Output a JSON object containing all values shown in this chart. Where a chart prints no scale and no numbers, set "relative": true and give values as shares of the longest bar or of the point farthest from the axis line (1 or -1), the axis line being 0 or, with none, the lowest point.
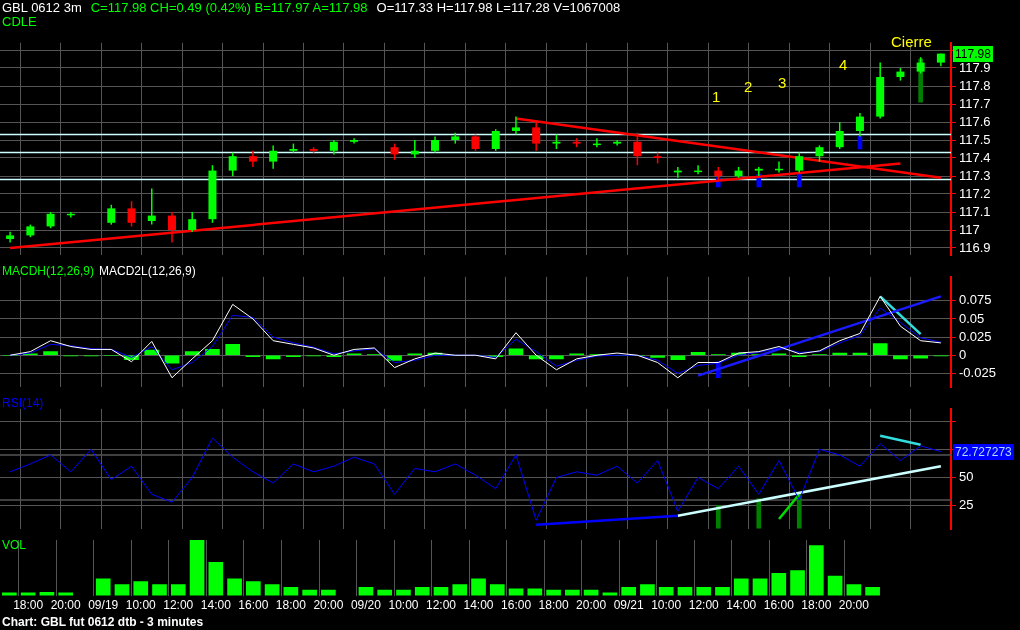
{
  "chart_data": [
    {
      "type": "candlestick",
      "title": "GBL 0612 3m",
      "subtitle": "C=117.98  CH=0.49 (0.42%)  B=117.97  A=117.98",
      "ylabel": "CDLE",
      "annotations": [
        "O=117.33  H=117.98  L=117.28  V=1067008",
        "117.98",
        "1",
        "2",
        "3",
        "4",
        "Cierre"
      ],
      "categories": [
        null,
        null,
        null,
        null,
        null,
        null,
        null,
        null,
        null,
        null,
        null,
        null,
        null,
        null,
        null,
        null,
        null,
        null,
        null,
        null,
        null,
        null,
        null,
        null,
        null,
        null,
        null,
        null,
        null,
        null,
        null,
        null,
        null,
        null,
        null,
        null,
        null,
        null,
        null,
        null,
        null,
        null,
        null,
        null,
        null,
        null,
        null
      ],
      "ohlc": [
        [
          116.95,
          116.99,
          116.93,
          116.97
        ],
        [
          116.97,
          117.03,
          116.96,
          117.02
        ],
        [
          117.02,
          117.1,
          117.01,
          117.09
        ],
        [
          117.09,
          117.1,
          117.07,
          117.09
        ],
        null,
        [
          117.04,
          117.14,
          117.03,
          117.12
        ],
        [
          117.12,
          117.16,
          117.02,
          117.04
        ],
        [
          117.05,
          117.23,
          117.03,
          117.08
        ],
        [
          117.08,
          117.1,
          116.93,
          117.0
        ],
        [
          117.0,
          117.1,
          116.99,
          117.06
        ],
        [
          117.06,
          117.36,
          117.04,
          117.33
        ],
        [
          117.33,
          117.43,
          117.3,
          117.41
        ],
        [
          117.41,
          117.44,
          117.35,
          117.38
        ],
        [
          117.38,
          117.47,
          117.34,
          117.44
        ],
        [
          117.44,
          117.48,
          117.43,
          117.45
        ],
        [
          117.45,
          117.46,
          117.43,
          117.44
        ],
        [
          117.44,
          117.5,
          117.42,
          117.49
        ],
        [
          117.49,
          117.51,
          117.48,
          117.5
        ],
        null,
        [
          117.46,
          117.48,
          117.39,
          117.42
        ],
        [
          117.42,
          117.5,
          117.4,
          117.44
        ],
        [
          117.44,
          117.52,
          117.43,
          117.5
        ],
        [
          117.5,
          117.54,
          117.48,
          117.52
        ],
        [
          117.52,
          117.53,
          117.44,
          117.45
        ],
        [
          117.45,
          117.56,
          117.44,
          117.55
        ],
        [
          117.55,
          117.63,
          117.53,
          117.57
        ],
        [
          117.57,
          117.6,
          117.44,
          117.48
        ],
        [
          117.48,
          117.53,
          117.45,
          117.49
        ],
        [
          117.49,
          117.51,
          117.46,
          117.48
        ],
        [
          117.48,
          117.51,
          117.46,
          117.48
        ],
        [
          117.48,
          117.5,
          117.47,
          117.49
        ],
        [
          117.49,
          117.54,
          117.36,
          117.41
        ],
        [
          117.41,
          117.43,
          117.37,
          117.4
        ],
        [
          117.32,
          117.35,
          117.29,
          117.33
        ],
        [
          117.33,
          117.36,
          117.31,
          117.33
        ],
        [
          117.33,
          117.35,
          117.27,
          117.3
        ],
        [
          117.3,
          117.35,
          117.29,
          117.33
        ],
        [
          117.33,
          117.35,
          117.3,
          117.34
        ],
        [
          117.34,
          117.38,
          117.32,
          117.34
        ],
        [
          117.33,
          117.43,
          117.32,
          117.41
        ],
        [
          117.41,
          117.47,
          117.38,
          117.46
        ],
        [
          117.46,
          117.6,
          117.45,
          117.55
        ],
        [
          117.55,
          117.65,
          117.52,
          117.63
        ],
        [
          117.63,
          117.93,
          117.62,
          117.85
        ],
        [
          117.85,
          117.9,
          117.83,
          117.88
        ],
        [
          117.88,
          117.96,
          117.87,
          117.93
        ],
        [
          117.93,
          117.98,
          117.91,
          117.98
        ]
      ],
      "colors": [
        "#00ff00",
        "#00ff00",
        "#00ff00",
        "#00ff00",
        null,
        "#00ff00",
        "#ff0000",
        "#00ff00",
        "#ff0000",
        "#00ff00",
        "#00ff00",
        "#00ff00",
        "#ff0000",
        "#00ff00",
        "#00ff00",
        "#ff0000",
        "#00ff00",
        "#00ff00",
        null,
        "#ff0000",
        "#00ff00",
        "#00ff00",
        "#00ff00",
        "#ff0000",
        "#00ff00",
        "#00ff00",
        "#ff0000",
        "#00ff00",
        "#ff0000",
        "#00ff00",
        "#00ff00",
        "#ff0000",
        "#ff0000",
        "#00ff00",
        "#00ff00",
        "#ff0000",
        "#00ff00",
        "#00ff00",
        "#00ff00",
        "#00ff00",
        "#00ff00",
        "#00ff00",
        "#00ff00",
        "#00ff00",
        "#00ff00",
        "#00ff00",
        "#00ff00"
      ],
      "series": [
        {
          "type": "line",
          "color": "#ff0000",
          "values": [
            116.9,
            null,
            null,
            null,
            null,
            null,
            null,
            null,
            null,
            null,
            null,
            null,
            null,
            null,
            null,
            null,
            null,
            null,
            null,
            null,
            null,
            null,
            null,
            null,
            null,
            null,
            null,
            null,
            null,
            null,
            null,
            null,
            null,
            null,
            null,
            null,
            null,
            null,
            null,
            null,
            null,
            null,
            null,
            null,
            117.37,
            null,
            null
          ]
        },
        {
          "type": "line",
          "color": "#ff0000",
          "values": [
            null,
            null,
            null,
            null,
            null,
            null,
            null,
            null,
            null,
            null,
            null,
            null,
            null,
            null,
            null,
            null,
            null,
            null,
            null,
            null,
            null,
            null,
            null,
            null,
            null,
            117.62,
            null,
            null,
            null,
            null,
            null,
            null,
            null,
            null,
            null,
            null,
            null,
            null,
            null,
            null,
            null,
            null,
            null,
            null,
            null,
            null,
            117.29
          ]
        },
        {
          "type": "bar",
          "base": [
            null,
            null,
            null,
            null,
            null,
            null,
            null,
            null,
            null,
            null,
            null,
            null,
            null,
            null,
            null,
            null,
            null,
            null,
            null,
            null,
            null,
            null,
            null,
            null,
            null,
            null,
            null,
            null,
            null,
            null,
            null,
            null,
            null,
            null,
            null,
            117.24,
            null,
            117.24,
            null,
            117.24,
            null,
            null,
            117.45,
            null,
            null,
            117.71,
            null
          ],
          "values": [
            null,
            null,
            null,
            null,
            null,
            null,
            null,
            null,
            null,
            null,
            null,
            null,
            null,
            null,
            null,
            null,
            null,
            null,
            null,
            null,
            null,
            null,
            null,
            null,
            null,
            null,
            null,
            null,
            null,
            null,
            null,
            null,
            null,
            null,
            null,
            0.05,
            null,
            0.07,
            null,
            0.08,
            null,
            null,
            0.07,
            null,
            null,
            0.24,
            null
          ],
          "colors": [
            null,
            null,
            null,
            null,
            null,
            null,
            null,
            null,
            null,
            null,
            null,
            null,
            null,
            null,
            null,
            null,
            null,
            null,
            null,
            null,
            null,
            null,
            null,
            null,
            null,
            null,
            null,
            null,
            null,
            null,
            null,
            null,
            null,
            null,
            null,
            "#0000ff",
            null,
            "#0000ff",
            null,
            "#0000ff",
            null,
            null,
            "#0000ff",
            null,
            null,
            "#008000",
            null
          ]
        }
      ],
      "ref_lines": [
        {
          "axis": "y",
          "value": 117.53,
          "color": "#ccffff"
        },
        {
          "axis": "y",
          "value": 117.43,
          "color": "#ccffff"
        },
        {
          "axis": "y",
          "value": 117.28,
          "color": "#ccffff"
        }
      ],
      "ylim": [
        116.86,
        118.04
      ],
      "yticks": [
        116.9,
        117,
        117.1,
        117.2,
        117.3,
        117.4,
        117.5,
        117.6,
        117.7,
        117.8,
        117.9,
        {
          "value": 118,
          "label": null
        }
      ],
      "grid": true,
      "tick_labels": "y"
    },
    {
      "type": "line",
      "legend": "top left",
      "categories": [
        null,
        null,
        null,
        null,
        null,
        null,
        null,
        null,
        null,
        null,
        null,
        null,
        null,
        null,
        null,
        null,
        null,
        null,
        null,
        null,
        null,
        null,
        null,
        null,
        null,
        null,
        null,
        null,
        null,
        null,
        null,
        null,
        null,
        null,
        null,
        null,
        null,
        null,
        null,
        null,
        null,
        null,
        null,
        null,
        null,
        null,
        null
      ],
      "series": [
        {
          "name": "MACDH(12,26,9)",
          "type": "bar",
          "color": "#00ff00",
          "values": [
            0.0,
            0.002,
            0.005,
            -0.001,
            -0.001,
            0.0,
            -0.006,
            0.007,
            -0.011,
            0.005,
            0.008,
            0.015,
            -0.002,
            -0.005,
            -0.002,
            -0.001,
            -0.002,
            0.002,
            0.001,
            -0.007,
            0.002,
            0.003,
            0.0,
            0.0,
            -0.002,
            0.009,
            -0.005,
            -0.005,
            0.002,
            0.001,
            0.0,
            0.0,
            -0.003,
            -0.006,
            0.004,
            0.001,
            0.003,
            0.001,
            0.002,
            -0.002,
            0.001,
            0.003,
            0.003,
            0.016,
            -0.005,
            -0.004,
            -0.001
          ]
        },
        {
          "name": "MACD2L(12,26,9)",
          "type": "line",
          "color": "#ffffff",
          "values": [
            0.0,
            0.005,
            0.02,
            0.012,
            0.008,
            0.008,
            -0.009,
            0.019,
            -0.031,
            -0.005,
            0.02,
            0.07,
            0.05,
            0.02,
            0.015,
            0.01,
            0.0,
            0.008,
            0.01,
            -0.017,
            -0.005,
            0.003,
            0.0,
            0.0,
            -0.005,
            0.031,
            0.0,
            -0.02,
            -0.005,
            0.0,
            0.003,
            0.0,
            -0.01,
            -0.031,
            -0.01,
            -0.01,
            0.003,
            0.005,
            0.012,
            0.002,
            0.006,
            0.02,
            0.03,
            0.081,
            0.04,
            0.02,
            0.017
          ]
        },
        {
          "type": "line",
          "color": "#0000ff",
          "values": [
            0.0,
            0.003,
            0.015,
            0.013,
            0.009,
            0.008,
            -0.003,
            0.012,
            -0.02,
            -0.01,
            0.012,
            0.055,
            0.052,
            0.025,
            0.017,
            0.011,
            0.002,
            0.006,
            0.009,
            -0.01,
            -0.007,
            0.0,
            0.0,
            0.0,
            -0.003,
            0.022,
            0.005,
            -0.015,
            -0.007,
            -0.001,
            0.0,
            0.0,
            -0.007,
            -0.025,
            -0.014,
            -0.011,
            0.0,
            0.004,
            0.01,
            0.004,
            0.005,
            0.017,
            0.027,
            0.065,
            0.045,
            0.024,
            0.018
          ]
        },
        {
          "type": "line",
          "color": "#1a1aff",
          "values": [
            null,
            null,
            null,
            null,
            null,
            null,
            null,
            null,
            null,
            null,
            null,
            null,
            null,
            null,
            null,
            null,
            null,
            null,
            null,
            null,
            null,
            null,
            null,
            null,
            null,
            null,
            null,
            null,
            null,
            null,
            null,
            null,
            null,
            null,
            -0.028,
            null,
            null,
            null,
            null,
            null,
            null,
            null,
            null,
            null,
            null,
            null,
            0.081
          ]
        },
        {
          "type": "line",
          "color": "#33dddd",
          "values": [
            null,
            null,
            null,
            null,
            null,
            null,
            null,
            null,
            null,
            null,
            null,
            null,
            null,
            null,
            null,
            null,
            null,
            null,
            null,
            null,
            null,
            null,
            null,
            null,
            null,
            null,
            null,
            null,
            null,
            null,
            null,
            null,
            null,
            null,
            null,
            null,
            null,
            null,
            null,
            null,
            null,
            null,
            null,
            0.081,
            null,
            0.029,
            null
          ]
        },
        {
          "type": "bar",
          "base": [
            null,
            null,
            null,
            null,
            null,
            null,
            null,
            null,
            null,
            null,
            null,
            null,
            null,
            null,
            null,
            null,
            null,
            null,
            null,
            null,
            null,
            null,
            null,
            null,
            null,
            null,
            null,
            null,
            null,
            null,
            null,
            null,
            null,
            null,
            null,
            -0.031,
            null,
            null,
            null,
            null,
            null,
            null,
            null,
            null,
            null,
            null,
            null
          ],
          "values": [
            null,
            null,
            null,
            null,
            null,
            null,
            null,
            null,
            null,
            null,
            null,
            null,
            null,
            null,
            null,
            null,
            null,
            null,
            null,
            null,
            null,
            null,
            null,
            null,
            null,
            null,
            null,
            null,
            null,
            null,
            null,
            null,
            null,
            null,
            null,
            0.022,
            null,
            null,
            null,
            null,
            null,
            null,
            null,
            null,
            null,
            null,
            null
          ],
          "color": "#0000ff"
        }
      ],
      "ylim": [
        -0.044,
        0.108
      ],
      "yticks": [
        -0.025,
        0,
        0.025,
        0.05,
        0.075
      ],
      "grid": true,
      "tick_labels": "y"
    },
    {
      "type": "line",
      "legend": "top left",
      "annotations": [
        "72.727273"
      ],
      "categories": [
        null,
        null,
        null,
        null,
        null,
        null,
        null,
        null,
        null,
        null,
        null,
        null,
        null,
        null,
        null,
        null,
        null,
        null,
        null,
        null,
        null,
        null,
        null,
        null,
        null,
        null,
        null,
        null,
        null,
        null,
        null,
        null,
        null,
        null,
        null,
        null,
        null,
        null,
        null,
        null,
        null,
        null,
        null,
        null,
        null,
        null,
        null
      ],
      "series": [
        {
          "name": "RSI(14)",
          "type": "line",
          "color": "#0000ff",
          "values": [
            55,
            62,
            70,
            55,
            75,
            48,
            60,
            35,
            28,
            50,
            85,
            68,
            55,
            45,
            62,
            55,
            60,
            68,
            62,
            35,
            58,
            55,
            62,
            52,
            40,
            70,
            12,
            50,
            55,
            52,
            60,
            45,
            65,
            20,
            50,
            40,
            60,
            35,
            65,
            30,
            75,
            70,
            60,
            80,
            65,
            78,
            73
          ]
        },
        {
          "type": "line",
          "color": "#0000ff",
          "values": [
            null,
            null,
            null,
            null,
            null,
            null,
            null,
            null,
            null,
            null,
            null,
            null,
            null,
            null,
            null,
            null,
            null,
            null,
            null,
            null,
            null,
            null,
            null,
            null,
            null,
            null,
            8,
            null,
            null,
            null,
            null,
            null,
            null,
            16,
            null,
            null,
            null,
            null,
            null,
            null,
            null,
            null,
            null,
            null,
            null,
            null,
            null
          ]
        },
        {
          "type": "line",
          "color": "#ccffff",
          "values": [
            null,
            null,
            null,
            null,
            null,
            null,
            null,
            null,
            null,
            null,
            null,
            null,
            null,
            null,
            null,
            null,
            null,
            null,
            null,
            null,
            null,
            null,
            null,
            null,
            null,
            null,
            null,
            null,
            null,
            null,
            null,
            null,
            null,
            16,
            null,
            null,
            null,
            null,
            null,
            null,
            null,
            null,
            null,
            null,
            null,
            null,
            60
          ]
        },
        {
          "type": "line",
          "color": "#33dddd",
          "values": [
            null,
            null,
            null,
            null,
            null,
            null,
            null,
            null,
            null,
            null,
            null,
            null,
            null,
            null,
            null,
            null,
            null,
            null,
            null,
            null,
            null,
            null,
            null,
            null,
            null,
            null,
            null,
            null,
            null,
            null,
            null,
            null,
            null,
            null,
            null,
            null,
            null,
            null,
            null,
            null,
            null,
            null,
            null,
            87,
            null,
            79,
            null
          ]
        },
        {
          "type": "line",
          "color": "#00dd00",
          "values": [
            null,
            null,
            null,
            null,
            null,
            null,
            null,
            null,
            null,
            null,
            null,
            null,
            null,
            null,
            null,
            null,
            null,
            null,
            null,
            null,
            null,
            null,
            null,
            null,
            null,
            null,
            null,
            null,
            null,
            null,
            null,
            null,
            null,
            null,
            null,
            null,
            null,
            null,
            13,
            35,
            null,
            null,
            null,
            null,
            null,
            null,
            null
          ]
        },
        {
          "type": "bar",
          "color": "#008000",
          "base": [
            null,
            null,
            null,
            null,
            null,
            null,
            null,
            null,
            null,
            null,
            null,
            null,
            null,
            null,
            null,
            null,
            null,
            null,
            null,
            null,
            null,
            null,
            null,
            null,
            null,
            null,
            null,
            null,
            null,
            null,
            null,
            null,
            null,
            null,
            null,
            5,
            null,
            5,
            null,
            5,
            null,
            null,
            null,
            null,
            null,
            null,
            null
          ],
          "values": [
            null,
            null,
            null,
            null,
            null,
            null,
            null,
            null,
            null,
            null,
            null,
            null,
            null,
            null,
            null,
            null,
            null,
            null,
            null,
            null,
            null,
            null,
            null,
            null,
            null,
            null,
            null,
            null,
            null,
            null,
            null,
            null,
            null,
            null,
            null,
            20,
            null,
            26,
            null,
            30,
            null,
            null,
            null,
            null,
            null,
            null,
            null
          ]
        }
      ],
      "ref_lines": [
        {
          "axis": "y",
          "value": 30,
          "color": "#555555"
        },
        {
          "axis": "y",
          "value": 70,
          "color": "#555555"
        }
      ],
      "ylim": [
        4,
        111
      ],
      "yticks": [
        25,
        50,
        {
          "value": 75,
          "label": null
        },
        {
          "value": 100,
          "label": null
        }
      ],
      "grid": true,
      "tick_labels": "y"
    },
    {
      "type": "bar",
      "relative": true,
      "legend": "top left",
      "annotations": [
        "Chart: GBL fut 0612 dtb - 3 minutes"
      ],
      "categories": [
        null,
        "18:00",
        null,
        "20:00",
        null,
        "09/19",
        null,
        "10:00",
        null,
        "12:00",
        null,
        "14:00",
        null,
        "16:00",
        null,
        "18:00",
        null,
        "20:00",
        null,
        "09/20",
        null,
        "10:00",
        null,
        "12:00",
        null,
        "14:00",
        null,
        "16:00",
        null,
        "18:00",
        null,
        "20:00",
        null,
        "09/21",
        null,
        "10:00",
        null,
        "12:00",
        null,
        "14:00",
        null,
        "16:00",
        null,
        "18:00",
        null,
        "20:00",
        null
      ],
      "series": [
        {
          "name": "VOL",
          "color": "#00ff00",
          "values": [
            0.05,
            0.05,
            0.06,
            0.05,
            null,
            0.3,
            0.2,
            0.25,
            0.2,
            0.2,
            1.0,
            0.6,
            0.3,
            0.25,
            0.2,
            0.15,
            0.1,
            0.1,
            null,
            0.15,
            0.1,
            0.1,
            0.15,
            0.15,
            0.2,
            0.3,
            0.2,
            0.12,
            0.12,
            0.1,
            0.1,
            0.1,
            0.05,
            0.15,
            0.2,
            0.15,
            0.15,
            0.15,
            0.15,
            0.3,
            0.3,
            0.4,
            0.45,
            0.9,
            0.35,
            0.2,
            0.15
          ]
        }
      ],
      "grid": "x",
      "tick_labels": "x"
    }
  ]
}
